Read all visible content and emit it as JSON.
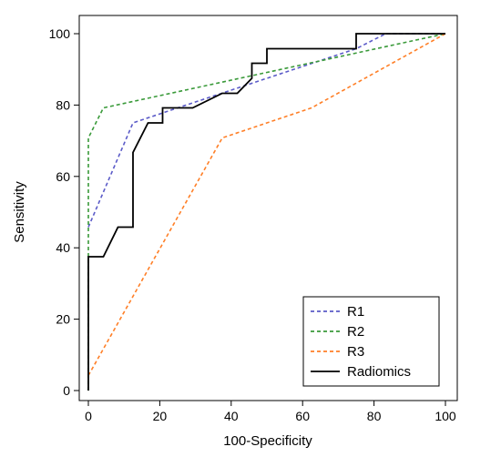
{
  "chart_data": {
    "type": "line",
    "title": "",
    "xlabel": "100-Specificity",
    "ylabel": "Sensitivity",
    "xlim": [
      0,
      100
    ],
    "ylim": [
      0,
      100
    ],
    "x_ticks": [
      0,
      20,
      40,
      60,
      80,
      100
    ],
    "y_ticks": [
      0,
      20,
      40,
      60,
      80,
      100
    ],
    "grid": false,
    "legend_position": "bottom-right",
    "series": [
      {
        "name": "R1",
        "color": "#5b5bc8",
        "dash": "dashed",
        "points": [
          [
            0,
            45.8
          ],
          [
            12.5,
            75
          ],
          [
            25,
            79.2
          ],
          [
            50,
            87.5
          ],
          [
            75,
            95.8
          ],
          [
            83.3,
            100
          ],
          [
            100,
            100
          ]
        ]
      },
      {
        "name": "R2",
        "color": "#3a9a3a",
        "dash": "dashed",
        "points": [
          [
            0,
            0
          ],
          [
            0,
            70.8
          ],
          [
            4.2,
            79.2
          ],
          [
            100,
            100
          ]
        ]
      },
      {
        "name": "R3",
        "color": "#ff7f27",
        "dash": "dashed",
        "points": [
          [
            0,
            4.2
          ],
          [
            37.5,
            70.8
          ],
          [
            62.5,
            79.2
          ],
          [
            100,
            100
          ]
        ]
      },
      {
        "name": "Radiomics",
        "color": "#000000",
        "dash": "solid",
        "points": [
          [
            0,
            0
          ],
          [
            0,
            37.5
          ],
          [
            4.2,
            37.5
          ],
          [
            8.3,
            45.8
          ],
          [
            12.5,
            45.8
          ],
          [
            12.5,
            66.7
          ],
          [
            16.7,
            75
          ],
          [
            20.8,
            75
          ],
          [
            20.8,
            79.2
          ],
          [
            29.2,
            79.2
          ],
          [
            37.5,
            83.3
          ],
          [
            41.7,
            83.3
          ],
          [
            45.8,
            87.5
          ],
          [
            45.8,
            91.7
          ],
          [
            50,
            91.7
          ],
          [
            50,
            95.8
          ],
          [
            75,
            95.8
          ],
          [
            75,
            100
          ],
          [
            100,
            100
          ]
        ]
      }
    ]
  }
}
